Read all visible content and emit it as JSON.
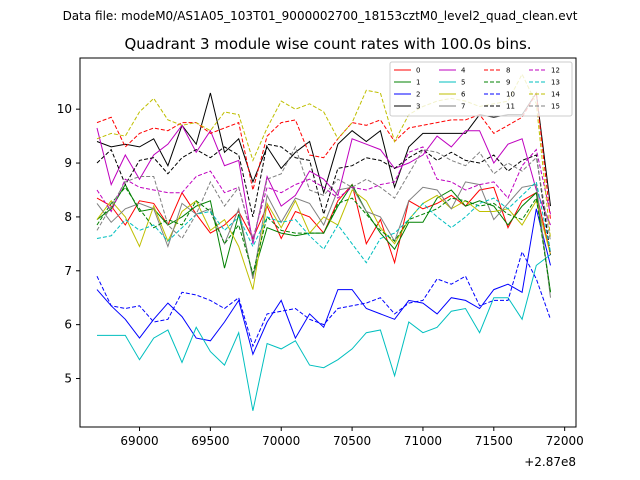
{
  "chart_data": {
    "type": "line",
    "suptitle": "Data file: modeM0/AS1A05_103T01_9000002700_18153cztM0_level2_quad_clean.evt",
    "title": "Quadrant 3 module wise count rates with 100.0s bins.",
    "xlabel": "",
    "ylabel": "",
    "x_offset_label": "+2.87e8",
    "xlim": [
      68580,
      72080
    ],
    "ylim": [
      4.1,
      10.95
    ],
    "x_ticks": [
      69000,
      69500,
      70000,
      70500,
      71000,
      71500,
      72000
    ],
    "x_tick_labels": [
      "69000",
      "69500",
      "70000",
      "70500",
      "71000",
      "71500",
      "72000"
    ],
    "y_ticks": [
      5,
      6,
      7,
      8,
      9,
      10
    ],
    "y_tick_labels": [
      "5",
      "6",
      "7",
      "8",
      "9",
      "10"
    ],
    "legend_position": "top-right",
    "legend_columns": 4,
    "x": [
      68700,
      68800,
      68900,
      69000,
      69100,
      69200,
      69300,
      69400,
      69500,
      69600,
      69700,
      69800,
      69900,
      70000,
      70100,
      70200,
      70300,
      70400,
      70500,
      70600,
      70700,
      70800,
      70900,
      71000,
      71100,
      71200,
      71300,
      71400,
      71500,
      71600,
      71700,
      71800,
      71900
    ],
    "series": [
      {
        "name": "0",
        "color": "#ff0000",
        "dash": false,
        "values": [
          8.35,
          8.2,
          7.85,
          8.3,
          8.25,
          7.85,
          8.45,
          8.05,
          7.7,
          7.85,
          8.1,
          7.6,
          8.2,
          7.6,
          8.1,
          8.0,
          7.7,
          8.3,
          8.6,
          7.5,
          7.95,
          7.15,
          8.3,
          8.15,
          8.25,
          8.4,
          8.2,
          8.5,
          8.55,
          7.8,
          8.3,
          8.45,
          7.3
        ]
      },
      {
        "name": "1",
        "color": "#008000",
        "dash": false,
        "values": [
          7.95,
          8.15,
          8.6,
          8.1,
          8.15,
          7.85,
          8.0,
          8.2,
          8.3,
          7.05,
          8.05,
          6.9,
          7.8,
          7.7,
          7.65,
          7.7,
          7.7,
          8.2,
          8.6,
          8.1,
          7.7,
          7.4,
          7.9,
          7.9,
          8.35,
          8.5,
          8.2,
          8.3,
          8.2,
          7.85,
          8.2,
          8.45,
          6.6
        ]
      },
      {
        "name": "2",
        "color": "#0000ff",
        "dash": false,
        "values": [
          6.65,
          6.35,
          6.1,
          5.75,
          6.1,
          6.4,
          6.15,
          5.75,
          5.7,
          6.05,
          6.45,
          5.45,
          6.05,
          6.45,
          5.75,
          6.2,
          5.95,
          6.65,
          6.65,
          6.3,
          6.2,
          6.1,
          6.45,
          6.4,
          6.2,
          6.5,
          6.45,
          6.3,
          6.65,
          6.75,
          6.6,
          8.15,
          7.1
        ]
      },
      {
        "name": "3",
        "color": "#000000",
        "dash": false,
        "values": [
          9.4,
          9.3,
          9.35,
          9.3,
          9.45,
          8.95,
          9.7,
          9.35,
          10.3,
          9.2,
          9.45,
          8.65,
          9.3,
          8.9,
          9.2,
          9.4,
          8.45,
          9.35,
          9.6,
          9.4,
          9.6,
          8.55,
          9.3,
          9.55,
          9.55,
          9.55,
          9.55,
          9.9,
          9.85,
          9.9,
          9.9,
          10.3,
          8.2
        ]
      },
      {
        "name": "4",
        "color": "#bf00bf",
        "dash": false,
        "values": [
          9.65,
          8.6,
          9.15,
          8.7,
          9.15,
          9.35,
          9.7,
          9.2,
          9.6,
          8.95,
          9.05,
          7.5,
          8.75,
          8.2,
          8.4,
          8.85,
          8.7,
          8.4,
          9.45,
          9.35,
          9.25,
          8.9,
          9.0,
          9.15,
          9.5,
          9.3,
          9.6,
          9.6,
          9.0,
          9.35,
          9.45,
          8.5,
          7.85
        ]
      },
      {
        "name": "5",
        "color": "#00bfbf",
        "dash": false,
        "values": [
          5.8,
          5.8,
          5.8,
          5.35,
          5.75,
          5.9,
          5.3,
          5.95,
          5.5,
          5.25,
          5.85,
          4.4,
          5.65,
          5.55,
          5.7,
          5.25,
          5.2,
          5.35,
          5.55,
          5.85,
          5.9,
          5.05,
          6.05,
          5.85,
          5.95,
          6.25,
          6.3,
          5.85,
          6.5,
          6.5,
          6.1,
          7.1,
          7.3
        ]
      },
      {
        "name": "6",
        "color": "#bfbf00",
        "dash": false,
        "values": [
          7.95,
          8.3,
          8.0,
          7.45,
          8.2,
          7.55,
          8.1,
          8.3,
          7.75,
          7.95,
          7.45,
          6.65,
          8.25,
          7.8,
          8.3,
          7.7,
          8.0,
          7.85,
          8.5,
          8.3,
          7.8,
          7.5,
          7.95,
          8.25,
          8.4,
          8.15,
          8.3,
          8.1,
          8.1,
          8.15,
          7.85,
          8.3,
          7.3
        ]
      },
      {
        "name": "7",
        "color": "#808080",
        "dash": false,
        "values": [
          8.25,
          7.9,
          8.15,
          8.25,
          8.15,
          7.45,
          8.25,
          8.05,
          8.15,
          7.5,
          8.15,
          6.85,
          8.4,
          7.9,
          8.35,
          8.25,
          7.85,
          8.5,
          8.55,
          8.1,
          8.0,
          7.55,
          8.3,
          8.55,
          8.5,
          8.15,
          8.65,
          8.6,
          7.95,
          8.25,
          8.55,
          8.6,
          6.5
        ]
      },
      {
        "name": "8",
        "color": "#ff0000",
        "dash": true,
        "values": [
          9.75,
          9.85,
          9.3,
          9.55,
          9.65,
          9.6,
          9.75,
          9.75,
          9.55,
          9.65,
          9.75,
          8.5,
          9.5,
          9.75,
          9.8,
          9.15,
          9.1,
          9.45,
          9.75,
          9.7,
          9.8,
          9.4,
          9.65,
          9.7,
          9.75,
          9.8,
          9.8,
          9.9,
          9.55,
          9.7,
          9.85,
          10.3,
          7.95
        ]
      },
      {
        "name": "9",
        "color": "#008000",
        "dash": true,
        "values": [
          7.85,
          8.25,
          8.55,
          8.15,
          7.8,
          7.95,
          7.85,
          8.3,
          8.1,
          7.5,
          7.85,
          6.95,
          8.0,
          7.75,
          7.7,
          7.7,
          7.7,
          8.25,
          8.35,
          8.05,
          7.75,
          7.55,
          7.95,
          8.05,
          8.15,
          8.35,
          8.3,
          8.2,
          8.25,
          8.05,
          7.95,
          8.35,
          6.6
        ]
      },
      {
        "name": "10",
        "color": "#0000ff",
        "dash": true,
        "values": [
          6.9,
          6.35,
          6.3,
          6.35,
          6.05,
          6.1,
          6.6,
          6.55,
          6.45,
          6.3,
          6.5,
          5.6,
          6.2,
          6.25,
          6.3,
          6.1,
          6.0,
          6.3,
          6.35,
          6.4,
          6.5,
          6.2,
          6.4,
          6.45,
          6.85,
          6.75,
          6.9,
          6.35,
          6.45,
          6.45,
          7.35,
          6.85,
          6.1
        ]
      },
      {
        "name": "11",
        "color": "#000000",
        "dash": true,
        "values": [
          9.0,
          9.25,
          8.6,
          9.05,
          9.1,
          8.8,
          9.1,
          9.25,
          9.1,
          9.3,
          9.15,
          8.0,
          9.35,
          9.3,
          9.1,
          9.05,
          8.05,
          8.9,
          8.95,
          9.1,
          9.05,
          8.9,
          9.1,
          9.25,
          9.05,
          9.2,
          9.05,
          9.0,
          9.15,
          8.85,
          9.05,
          9.15,
          7.3
        ]
      },
      {
        "name": "12",
        "color": "#bf00bf",
        "dash": true,
        "values": [
          8.5,
          8.1,
          8.7,
          8.55,
          8.5,
          8.45,
          8.45,
          8.75,
          8.85,
          8.45,
          8.55,
          7.6,
          8.55,
          8.45,
          8.6,
          8.7,
          8.55,
          8.35,
          8.55,
          8.5,
          8.6,
          8.65,
          9.2,
          9.3,
          8.7,
          8.65,
          8.5,
          8.6,
          8.65,
          8.35,
          8.95,
          9.25,
          8.05
        ]
      },
      {
        "name": "13",
        "color": "#00bfbf",
        "dash": true,
        "values": [
          7.6,
          7.65,
          7.95,
          7.75,
          7.85,
          7.55,
          7.8,
          8.05,
          8.1,
          7.75,
          8.0,
          7.45,
          8.0,
          7.9,
          7.95,
          7.65,
          7.4,
          7.85,
          7.5,
          7.15,
          7.6,
          7.7,
          7.95,
          8.25,
          8.0,
          7.8,
          8.0,
          8.25,
          8.35,
          8.15,
          8.4,
          8.65,
          7.35
        ]
      },
      {
        "name": "14",
        "color": "#bfbf00",
        "dash": true,
        "values": [
          9.45,
          9.55,
          9.5,
          9.95,
          10.2,
          9.8,
          9.7,
          9.75,
          9.6,
          9.95,
          9.9,
          9.05,
          9.65,
          10.15,
          10.0,
          10.1,
          9.95,
          9.45,
          9.75,
          10.35,
          10.3,
          9.4,
          9.9,
          10.05,
          10.15,
          10.2,
          10.15,
          10.05,
          10.1,
          10.15,
          10.65,
          10.1,
          7.6
        ]
      },
      {
        "name": "15",
        "color": "#808080",
        "dash": true,
        "values": [
          7.75,
          8.2,
          8.65,
          8.75,
          8.75,
          7.85,
          7.6,
          8.05,
          8.65,
          8.2,
          8.55,
          7.55,
          8.7,
          8.8,
          9.3,
          8.5,
          8.4,
          8.7,
          8.55,
          8.7,
          8.55,
          8.35,
          8.8,
          9.25,
          9.2,
          9.05,
          8.95,
          9.2,
          8.8,
          9.0,
          8.85,
          9.1,
          7.55
        ]
      }
    ]
  }
}
